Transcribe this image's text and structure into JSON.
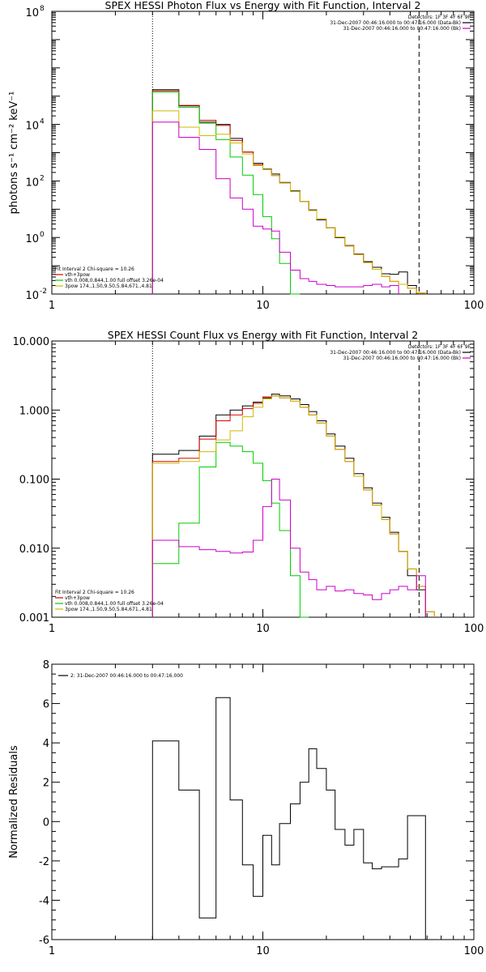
{
  "chart_data": [
    {
      "type": "line",
      "title": "SPEX HESSI Photon Flux vs Energy with Fit Function, Interval 2",
      "ylabel": "photons s⁻¹ cm⁻² keV⁻¹",
      "xlabel": "",
      "x_scale": "log",
      "y_scale": "log",
      "xlim": [
        1,
        100
      ],
      "ylim": [
        0.01,
        100000000
      ],
      "xticks": [
        {
          "v": 1,
          "label": "1"
        },
        {
          "v": 10,
          "label": "10"
        },
        {
          "v": 100,
          "label": "100"
        }
      ],
      "yticks": [
        {
          "v": 0.01,
          "label": "10",
          "exp": "-2"
        },
        {
          "v": 1,
          "label": "10",
          "exp": "0"
        },
        {
          "v": 100,
          "label": "10",
          "exp": "2"
        },
        {
          "v": 10000,
          "label": "10",
          "exp": "4"
        },
        {
          "v": 100000000,
          "label": "10",
          "exp": "8"
        }
      ],
      "vlines": [
        {
          "x": 3,
          "style": "dotted"
        },
        {
          "x": 55,
          "style": "dashed"
        }
      ],
      "legend_top_right": [
        {
          "text": "Detectors: 1F 3F 4F 6F 9F",
          "color": ""
        },
        {
          "text": "31-Dec-2007 00:46:16.000 to 00:47:16.000 (Data-Bk)",
          "color": "#000000"
        },
        {
          "text": "31-Dec-2007 00:46:16.000 to 00:47:16.000 (Bk)",
          "color": "#cc00cc"
        }
      ],
      "legend_bottom_left": [
        {
          "text": "Fit Interval 2   Chi-square = 10.26",
          "color": ""
        },
        {
          "text": "vth+3pow",
          "color": "#dd0000"
        },
        {
          "text": "vth 0.008,0.844,1.00  full offset 3.26e-04",
          "color": "#00cc00"
        },
        {
          "text": "3pow 174.,1.50,9.50,5.84,671.,4.81",
          "color": "#ccbb00"
        }
      ],
      "edges": [
        3,
        4,
        5,
        6,
        7,
        8,
        9,
        10,
        11,
        12,
        13.5,
        15,
        16.5,
        18,
        20,
        22,
        24.5,
        27,
        30,
        33,
        36.5,
        40,
        44,
        48.5,
        53.5,
        59,
        65
      ],
      "series": [
        {
          "name": "",
          "color": "#000000",
          "values": [
            170000,
            45000,
            12000,
            10000,
            3200,
            1050,
            420,
            260,
            175,
            88,
            44,
            19,
            9.5,
            4.2,
            2.2,
            1.0,
            0.52,
            0.26,
            0.14,
            0.088,
            0.052,
            0.05,
            0.06,
            0.02,
            0.005,
            null
          ]
        },
        {
          "name": "",
          "color": "#dd0000",
          "values": [
            155000,
            47000,
            14000,
            9200,
            2700,
            1050,
            380,
            250,
            155,
            85,
            42,
            19,
            9,
            4.5,
            2.2,
            1.05,
            0.5,
            0.25,
            0.13,
            0.075,
            0.042,
            0.028,
            0.022,
            0.016,
            0.011,
            null
          ]
        },
        {
          "name": "",
          "color": "#00cc00",
          "values": [
            140000,
            40000,
            11000,
            2900,
            700,
            160,
            33,
            5.5,
            0.9,
            0.12,
            0.01,
            null,
            null,
            null,
            null,
            null,
            null,
            null,
            null,
            null,
            null,
            null,
            null,
            null,
            null,
            null
          ]
        },
        {
          "name": "",
          "color": "#ccbb00",
          "values": [
            30000,
            8000,
            4000,
            4500,
            2200,
            900,
            350,
            250,
            155,
            85,
            42,
            19,
            9,
            4.5,
            2.2,
            1.05,
            0.5,
            0.25,
            0.13,
            0.075,
            0.042,
            0.028,
            0.022,
            0.016,
            0.011,
            null
          ]
        },
        {
          "name": "",
          "color": "#cc00cc",
          "values": [
            12000,
            3500,
            1300,
            120,
            25,
            10,
            2.5,
            2,
            1.7,
            0.3,
            0.07,
            0.035,
            0.028,
            0.022,
            0.02,
            0.018,
            0.018,
            0.018,
            0.02,
            0.022,
            0.018,
            0.02,
            null,
            null,
            null,
            null
          ]
        }
      ]
    },
    {
      "type": "line",
      "title": "SPEX HESSI Count Flux vs Energy with Fit Function, Interval 2",
      "ylabel": "",
      "xlabel": "",
      "x_scale": "log",
      "y_scale": "log",
      "xlim": [
        1,
        100
      ],
      "ylim": [
        0.001,
        10
      ],
      "xticks": [
        {
          "v": 1,
          "label": "1"
        },
        {
          "v": 10,
          "label": "10"
        },
        {
          "v": 100,
          "label": "100"
        }
      ],
      "yticks": [
        {
          "v": 0.001,
          "label": "0.001"
        },
        {
          "v": 0.01,
          "label": "0.010"
        },
        {
          "v": 0.1,
          "label": "0.100"
        },
        {
          "v": 1,
          "label": "1.000"
        },
        {
          "v": 10,
          "label": "10.000"
        }
      ],
      "vlines": [
        {
          "x": 3,
          "style": "dotted"
        },
        {
          "x": 55,
          "style": "dashed"
        }
      ],
      "legend_top_right": [
        {
          "text": "Detectors: 1F 3F 4F 6F 9F",
          "color": ""
        },
        {
          "text": "31-Dec-2007 00:46:16.000 to 00:47:16.000 (Data-Bk)",
          "color": "#000000"
        },
        {
          "text": "31-Dec-2007 00:46:16.000 to 00:47:16.000 (Bk)",
          "color": "#cc00cc"
        }
      ],
      "legend_bottom_left": [
        {
          "text": "Fit Interval 2   Chi-square = 10.26",
          "color": ""
        },
        {
          "text": "vth+3pow",
          "color": "#dd0000"
        },
        {
          "text": "vth 0.008,0.844,1.00  full offset 3.26e-04",
          "color": "#00cc00"
        },
        {
          "text": "3pow 174.,1.50,9.50,5.84,671.,4.81",
          "color": "#ccbb00"
        }
      ],
      "edges": [
        3,
        4,
        5,
        6,
        7,
        8,
        9,
        10,
        11,
        12,
        13.5,
        15,
        16.5,
        18,
        20,
        22,
        24.5,
        27,
        30,
        33,
        36.5,
        40,
        44,
        48.5,
        53.5,
        59,
        65
      ],
      "series": [
        {
          "name": "",
          "color": "#000000",
          "values": [
            0.23,
            0.26,
            0.42,
            0.85,
            1.0,
            1.15,
            1.3,
            1.5,
            1.7,
            1.6,
            1.45,
            1.2,
            0.95,
            0.7,
            0.45,
            0.3,
            0.2,
            0.12,
            0.075,
            0.045,
            0.028,
            0.017,
            0.009,
            0.004,
            0.0025,
            null
          ]
        },
        {
          "name": "",
          "color": "#dd0000",
          "values": [
            0.18,
            0.2,
            0.38,
            0.7,
            0.85,
            1.05,
            1.25,
            1.55,
            1.6,
            1.5,
            1.35,
            1.1,
            0.85,
            0.65,
            0.42,
            0.27,
            0.18,
            0.11,
            0.07,
            0.042,
            0.026,
            0.016,
            0.009,
            0.005,
            0.0028,
            0.0012
          ]
        },
        {
          "name": "",
          "color": "#00cc00",
          "values": [
            0.006,
            0.023,
            0.15,
            0.34,
            0.3,
            0.25,
            0.17,
            0.095,
            0.045,
            0.018,
            0.004,
            0.001,
            null,
            null,
            null,
            null,
            null,
            null,
            null,
            null,
            null,
            null,
            null,
            null,
            null,
            null
          ]
        },
        {
          "name": "",
          "color": "#ccbb00",
          "values": [
            0.17,
            0.18,
            0.25,
            0.37,
            0.5,
            0.8,
            1.1,
            1.45,
            1.6,
            1.5,
            1.35,
            1.1,
            0.85,
            0.65,
            0.42,
            0.27,
            0.18,
            0.11,
            0.07,
            0.042,
            0.026,
            0.016,
            0.009,
            0.005,
            0.0028,
            0.0012
          ]
        },
        {
          "name": "",
          "color": "#cc00cc",
          "values": [
            0.013,
            0.0105,
            0.0095,
            0.009,
            0.0085,
            0.0088,
            0.013,
            0.04,
            0.1,
            0.05,
            0.01,
            0.0045,
            0.0035,
            0.0025,
            0.0028,
            0.0024,
            0.0025,
            0.0022,
            0.0021,
            0.0018,
            0.0022,
            0.0025,
            0.0028,
            0.0025,
            0.004,
            null
          ]
        }
      ]
    },
    {
      "type": "line",
      "title": "",
      "ylabel": "Normalized Residuals",
      "xlabel": "",
      "x_scale": "log",
      "y_scale": "linear",
      "xlim": [
        1,
        100
      ],
      "ylim": [
        -6,
        8
      ],
      "xticks": [
        {
          "v": 1,
          "label": "1"
        },
        {
          "v": 10,
          "label": "10"
        },
        {
          "v": 100,
          "label": "100"
        }
      ],
      "yticks": [
        {
          "v": -6,
          "label": "-6"
        },
        {
          "v": -4,
          "label": "-4"
        },
        {
          "v": -2,
          "label": "-2"
        },
        {
          "v": 0,
          "label": "0"
        },
        {
          "v": 2,
          "label": "2"
        },
        {
          "v": 4,
          "label": "4"
        },
        {
          "v": 6,
          "label": "6"
        },
        {
          "v": 8,
          "label": "8"
        }
      ],
      "legend_top_left": [
        {
          "text": "2: 31-Dec-2007 00:46:16.000 to 00:47:16.000",
          "color": "#000000"
        }
      ],
      "edges": [
        3,
        4,
        5,
        6,
        7,
        8,
        9,
        10,
        11,
        12,
        13.5,
        15,
        16.5,
        18,
        20,
        22,
        24.5,
        27,
        30,
        33,
        36.5,
        40,
        44,
        48.5,
        53.5,
        59
      ],
      "series": [
        {
          "name": "",
          "color": "#000000",
          "values": [
            4.1,
            1.6,
            -4.9,
            6.3,
            1.1,
            -2.2,
            -3.8,
            -0.7,
            -2.2,
            -0.1,
            0.9,
            2.0,
            3.7,
            2.7,
            1.6,
            -0.4,
            -1.2,
            -0.4,
            -2.1,
            -2.4,
            -2.3,
            -2.3,
            -1.9,
            0.3,
            0.3
          ]
        }
      ]
    }
  ]
}
